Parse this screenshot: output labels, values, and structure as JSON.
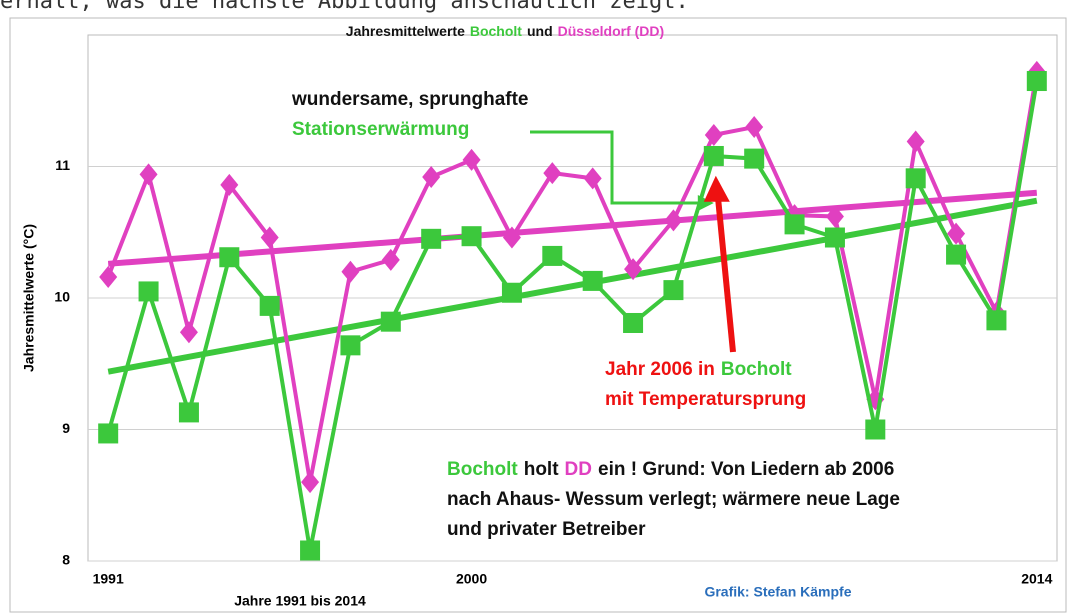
{
  "header": "erhält, was die nächste Abbildung anschaulich zeigt:",
  "chart_data": {
    "type": "line",
    "title": [
      {
        "text": "Jahresmittelwerte",
        "color": "#111111"
      },
      {
        "text": "Bocholt",
        "color": "#3cc83c"
      },
      {
        "text": "und",
        "color": "#111111"
      },
      {
        "text": "Düsseldorf (DD)",
        "color": "#e040c0"
      }
    ],
    "y_label": "Jahresmittelwerte (°C)",
    "x_label": "Jahre 1991 bis 2014",
    "credit": "Grafik: Stefan Kämpfe",
    "x": [
      1991,
      1992,
      1993,
      1994,
      1995,
      1996,
      1997,
      1998,
      1999,
      2000,
      2001,
      2002,
      2003,
      2004,
      2005,
      2006,
      2007,
      2008,
      2009,
      2010,
      2011,
      2012,
      2013,
      2014
    ],
    "series": [
      {
        "name": "Düsseldorf (DD)",
        "color": "#e040c0",
        "marker": "diamond",
        "values": [
          10.16,
          10.94,
          9.74,
          10.86,
          10.46,
          8.6,
          10.2,
          10.29,
          10.92,
          11.05,
          10.46,
          10.95,
          10.91,
          10.22,
          10.59,
          11.24,
          11.3,
          10.63,
          10.62,
          9.23,
          11.19,
          10.49,
          9.89,
          11.72
        ]
      },
      {
        "name": "Bocholt",
        "color": "#3cc83c",
        "marker": "square",
        "values": [
          8.97,
          10.05,
          9.13,
          10.31,
          9.94,
          8.08,
          9.64,
          9.82,
          10.45,
          10.47,
          10.04,
          10.32,
          10.13,
          9.81,
          10.06,
          11.08,
          11.06,
          10.56,
          10.46,
          9.0,
          10.91,
          10.33,
          9.83,
          11.65
        ]
      }
    ],
    "trend_lines": [
      {
        "color": "#e040c0",
        "x": [
          1991,
          2014
        ],
        "values": [
          10.26,
          10.8
        ]
      },
      {
        "color": "#3cc83c",
        "x": [
          1991,
          2014
        ],
        "values": [
          9.44,
          10.74
        ]
      }
    ],
    "xlim": [
      1990.5,
      2014.5
    ],
    "xticks": [
      1991,
      2000,
      2014
    ],
    "ylim": [
      8,
      12
    ],
    "yticks": [
      8,
      9,
      10,
      11
    ],
    "grid": true,
    "annotations": [
      {
        "color": "#3cc83c",
        "arrow_to": [
          2006,
          10.76
        ],
        "lines": [
          [
            {
              "text": "wundersame, sprunghafte",
              "color": "#111111"
            }
          ],
          [
            {
              "text": "Stationserwärmung",
              "color": "#3cc83c"
            }
          ]
        ]
      },
      {
        "color": "#ee1111",
        "arrow_to": [
          2006,
          10.93
        ],
        "lines": [
          [
            {
              "text": "Jahr 2006 in",
              "color": "#ee1111"
            },
            {
              "text": "Bocholt",
              "color": "#3cc83c"
            }
          ],
          [
            {
              "text": "mit Temperatursprung",
              "color": "#ee1111"
            }
          ]
        ]
      },
      {
        "lines": [
          [
            {
              "text": "Bocholt",
              "color": "#3cc83c"
            },
            {
              "text": "holt",
              "color": "#111111"
            },
            {
              "text": "DD",
              "color": "#e040c0"
            },
            {
              "text": "ein ! Grund: Von Liedern ab 2006",
              "color": "#111111"
            }
          ],
          [
            {
              "text": "nach Ahaus- Wessum verlegt; wärmere neue Lage",
              "color": "#111111"
            }
          ],
          [
            {
              "text": "und privater Betreiber",
              "color": "#111111"
            }
          ]
        ]
      }
    ]
  }
}
